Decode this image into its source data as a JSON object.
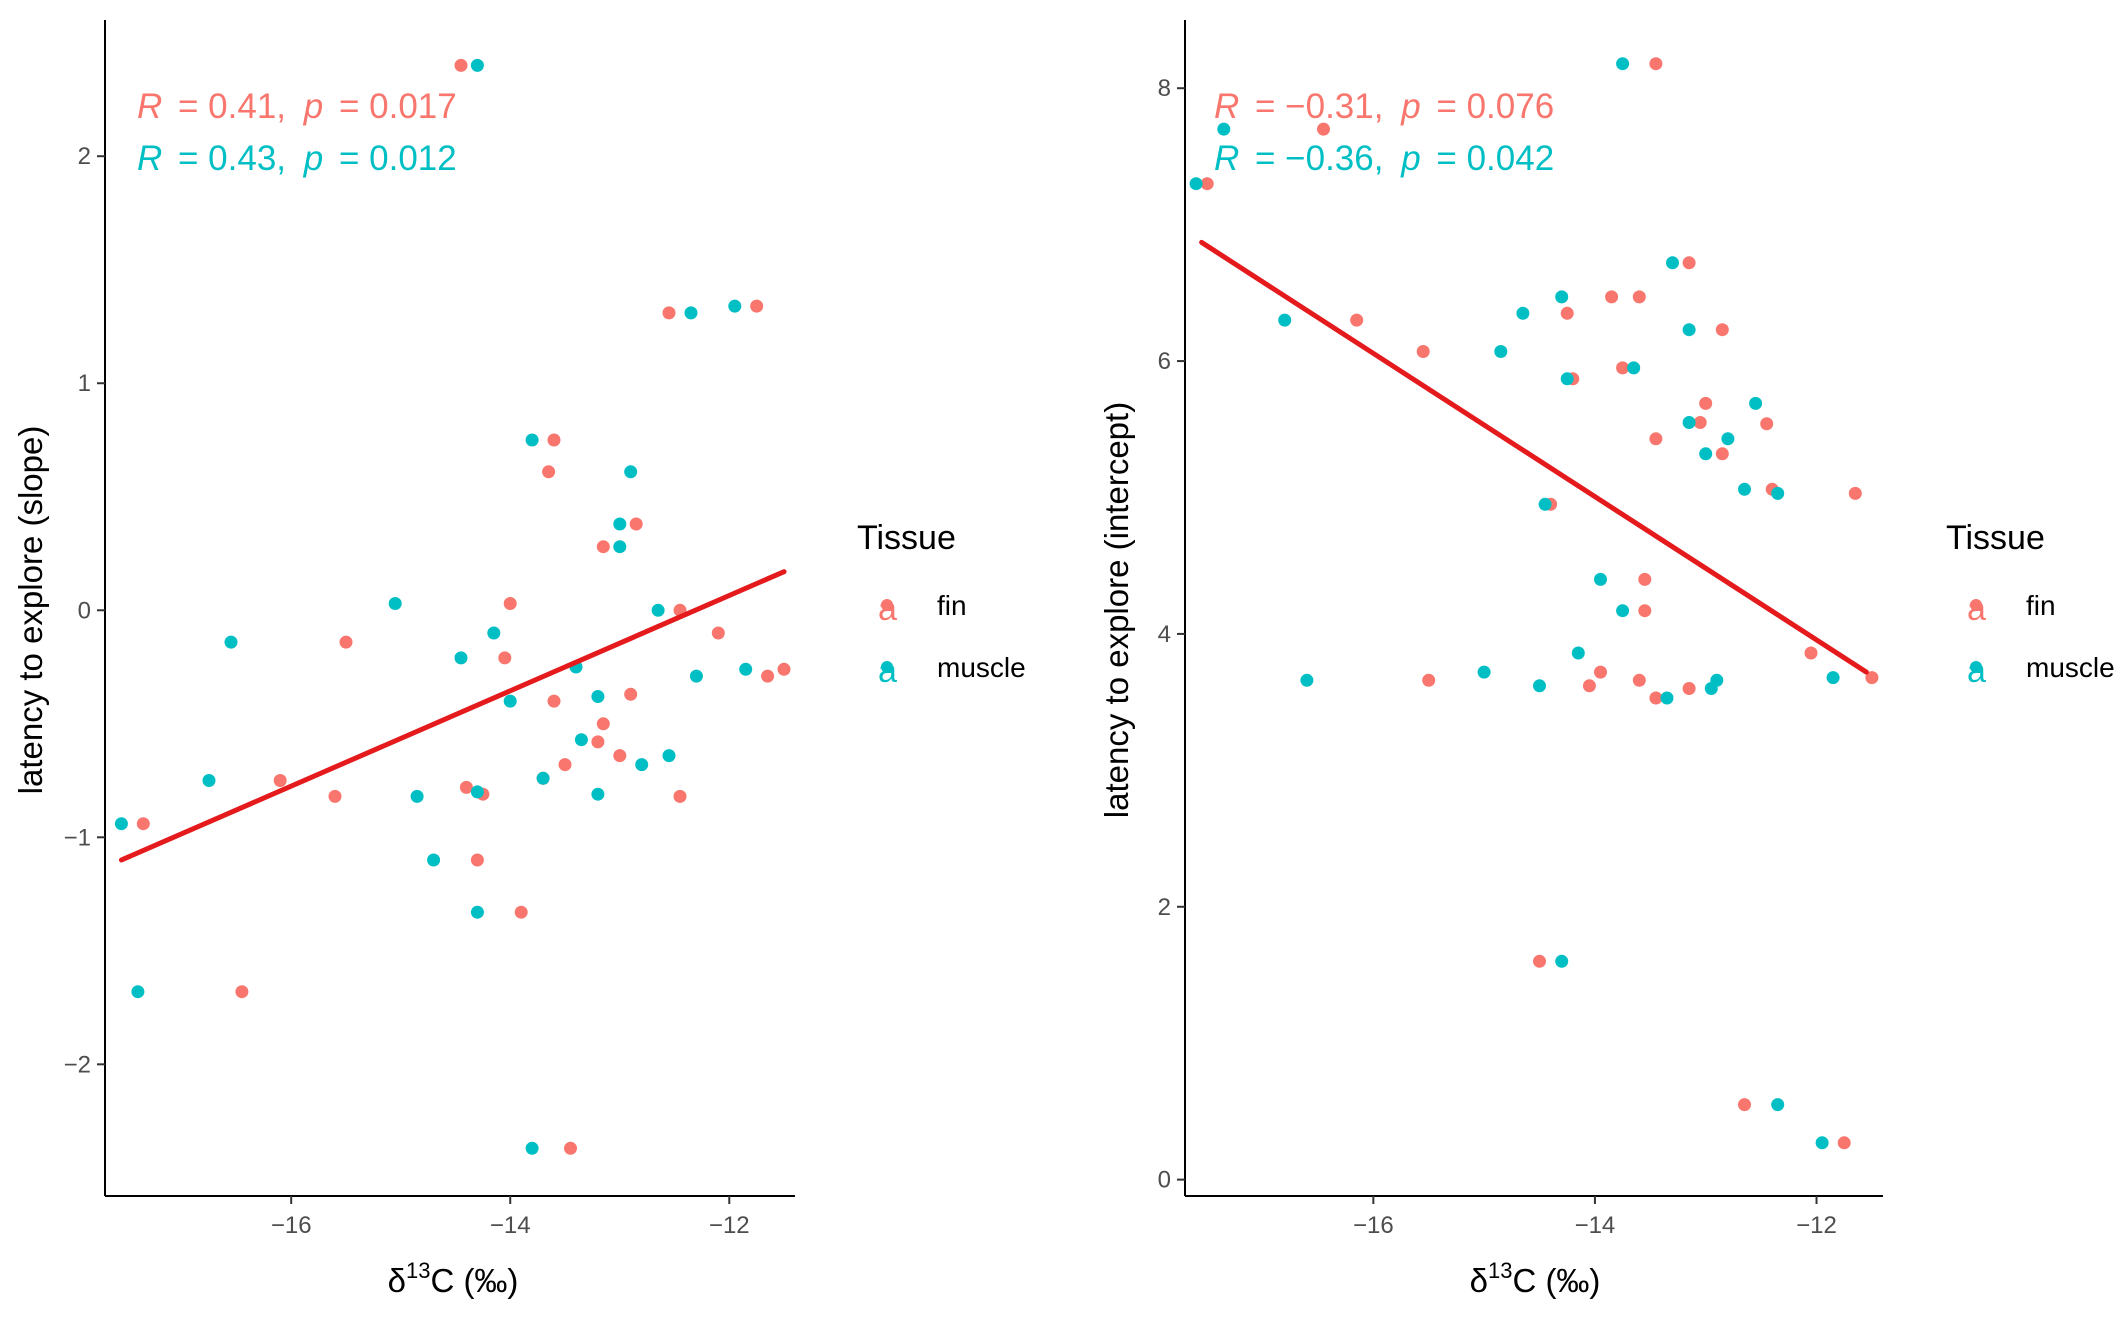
{
  "legend": {
    "title": "Tissue",
    "entries": [
      {
        "label": "fin",
        "key_glyph": "a",
        "color": "#F8766D"
      },
      {
        "label": "muscle",
        "key_glyph": "a",
        "color": "#00BFC4"
      }
    ]
  },
  "colors": {
    "fin": "#F8766D",
    "muscle": "#00BFC4",
    "fit_line": "#E41A1C",
    "axis": "#000000",
    "tick_text": "#4d4d4d"
  },
  "chart_data": [
    {
      "type": "scatter",
      "xlabel": "δ13C (‰)",
      "xlabel_parts": {
        "delta": "δ",
        "sup": "13",
        "rest": "C (‰)"
      },
      "ylabel": "latency to explore (slope)",
      "xlim": [
        -17.7,
        -11.4
      ],
      "ylim": [
        -2.58,
        2.6
      ],
      "xticks": [
        -16,
        -14,
        -12
      ],
      "yticks": [
        -2,
        -1,
        0,
        1,
        2
      ],
      "grid": false,
      "legend_position": "right",
      "annotations": [
        {
          "series": "fin",
          "r_label": "R",
          "r_value": "= 0.41,",
          "p_label": "p",
          "p_value": "= 0.017"
        },
        {
          "series": "muscle",
          "r_label": "R",
          "r_value": "= 0.43,",
          "p_label": "p",
          "p_value": "= 0.012"
        }
      ],
      "series": [
        {
          "name": "fin",
          "points": [
            [
              -17.35,
              -0.94
            ],
            [
              -16.45,
              -1.68
            ],
            [
              -16.1,
              -0.75
            ],
            [
              -15.6,
              -0.82
            ],
            [
              -15.5,
              -0.14
            ],
            [
              -14.45,
              2.4
            ],
            [
              -14.4,
              -0.78
            ],
            [
              -14.3,
              -1.1
            ],
            [
              -14.25,
              -0.81
            ],
            [
              -14.05,
              -0.21
            ],
            [
              -14.0,
              0.03
            ],
            [
              -13.9,
              -1.33
            ],
            [
              -13.7,
              -0.74
            ],
            [
              -13.65,
              0.61
            ],
            [
              -13.6,
              0.75
            ],
            [
              -13.6,
              -0.4
            ],
            [
              -13.45,
              -2.37
            ],
            [
              -13.5,
              -0.68
            ],
            [
              -13.2,
              -0.58
            ],
            [
              -13.15,
              -0.5
            ],
            [
              -13.15,
              0.28
            ],
            [
              -13.0,
              -0.64
            ],
            [
              -12.9,
              -0.37
            ],
            [
              -12.85,
              0.38
            ],
            [
              -12.55,
              1.31
            ],
            [
              -12.45,
              0.0
            ],
            [
              -12.45,
              -0.82
            ],
            [
              -12.1,
              -0.1
            ],
            [
              -11.75,
              1.34
            ],
            [
              -11.65,
              -0.29
            ],
            [
              -11.5,
              -0.26
            ]
          ]
        },
        {
          "name": "muscle",
          "points": [
            [
              -17.55,
              -0.94
            ],
            [
              -17.4,
              -1.68
            ],
            [
              -16.75,
              -0.75
            ],
            [
              -16.55,
              -0.14
            ],
            [
              -15.05,
              0.03
            ],
            [
              -14.85,
              -0.82
            ],
            [
              -14.7,
              -1.1
            ],
            [
              -14.45,
              -0.21
            ],
            [
              -14.3,
              -1.33
            ],
            [
              -14.3,
              2.4
            ],
            [
              -14.3,
              -0.8
            ],
            [
              -14.15,
              -0.1
            ],
            [
              -14.0,
              -0.4
            ],
            [
              -13.8,
              -2.37
            ],
            [
              -13.8,
              0.75
            ],
            [
              -13.7,
              -0.74
            ],
            [
              -13.4,
              -0.25
            ],
            [
              -13.35,
              -0.57
            ],
            [
              -13.2,
              -0.38
            ],
            [
              -13.2,
              -0.81
            ],
            [
              -13.0,
              0.38
            ],
            [
              -13.0,
              0.28
            ],
            [
              -12.9,
              0.61
            ],
            [
              -12.8,
              -0.68
            ],
            [
              -12.65,
              0.0
            ],
            [
              -12.55,
              -0.64
            ],
            [
              -12.35,
              1.31
            ],
            [
              -12.3,
              -0.29
            ],
            [
              -11.95,
              1.34
            ],
            [
              -11.85,
              -0.26
            ]
          ]
        }
      ],
      "fit": {
        "x": [
          -17.55,
          -11.5
        ],
        "y": [
          -1.1,
          0.17
        ]
      }
    },
    {
      "type": "scatter",
      "xlabel": "δ13C (‰)",
      "xlabel_parts": {
        "delta": "δ",
        "sup": "13",
        "rest": "C (‰)"
      },
      "ylabel": "latency to explore (intercept)",
      "xlim": [
        -17.7,
        -11.4
      ],
      "ylim": [
        -0.12,
        8.5
      ],
      "xticks": [
        -16,
        -14,
        -12
      ],
      "yticks": [
        0,
        2,
        4,
        6,
        8
      ],
      "grid": false,
      "legend_position": "right",
      "annotations": [
        {
          "series": "fin",
          "r_label": "R",
          "r_value": "= −0.31,",
          "p_label": "p",
          "p_value": "= 0.076"
        },
        {
          "series": "muscle",
          "r_label": "R",
          "r_value": "= −0.36,",
          "p_label": "p",
          "p_value": "= 0.042"
        }
      ],
      "series": [
        {
          "name": "fin",
          "points": [
            [
              -17.5,
              7.3
            ],
            [
              -16.45,
              7.7
            ],
            [
              -16.15,
              6.3
            ],
            [
              -15.55,
              6.07
            ],
            [
              -15.5,
              3.66
            ],
            [
              -14.5,
              1.6
            ],
            [
              -14.4,
              4.95
            ],
            [
              -14.2,
              5.87
            ],
            [
              -14.25,
              6.35
            ],
            [
              -14.05,
              3.62
            ],
            [
              -13.95,
              3.72
            ],
            [
              -13.85,
              6.47
            ],
            [
              -13.75,
              5.95
            ],
            [
              -13.6,
              3.66
            ],
            [
              -13.6,
              6.47
            ],
            [
              -13.55,
              4.4
            ],
            [
              -13.55,
              4.17
            ],
            [
              -13.45,
              5.43
            ],
            [
              -13.45,
              8.18
            ],
            [
              -13.45,
              3.53
            ],
            [
              -13.15,
              3.6
            ],
            [
              -13.15,
              6.72
            ],
            [
              -13.05,
              5.55
            ],
            [
              -13.0,
              5.69
            ],
            [
              -12.85,
              5.32
            ],
            [
              -12.85,
              6.23
            ],
            [
              -12.65,
              0.55
            ],
            [
              -12.45,
              5.54
            ],
            [
              -12.4,
              5.06
            ],
            [
              -12.05,
              3.86
            ],
            [
              -11.75,
              0.27
            ],
            [
              -11.65,
              5.03
            ],
            [
              -11.5,
              3.68
            ]
          ]
        },
        {
          "name": "muscle",
          "points": [
            [
              -17.6,
              7.3
            ],
            [
              -17.35,
              7.7
            ],
            [
              -16.8,
              6.3
            ],
            [
              -16.6,
              3.66
            ],
            [
              -15.0,
              3.72
            ],
            [
              -14.85,
              6.07
            ],
            [
              -14.65,
              6.35
            ],
            [
              -14.5,
              3.62
            ],
            [
              -14.45,
              4.95
            ],
            [
              -14.3,
              1.6
            ],
            [
              -14.3,
              6.47
            ],
            [
              -14.25,
              5.87
            ],
            [
              -14.15,
              3.86
            ],
            [
              -13.95,
              4.4
            ],
            [
              -13.75,
              8.18
            ],
            [
              -13.75,
              4.17
            ],
            [
              -13.65,
              5.95
            ],
            [
              -13.35,
              3.53
            ],
            [
              -13.3,
              6.72
            ],
            [
              -13.15,
              5.55
            ],
            [
              -13.15,
              6.23
            ],
            [
              -13.0,
              5.32
            ],
            [
              -12.95,
              3.6
            ],
            [
              -12.9,
              3.66
            ],
            [
              -12.8,
              5.43
            ],
            [
              -12.65,
              5.06
            ],
            [
              -12.55,
              5.69
            ],
            [
              -12.35,
              0.55
            ],
            [
              -12.35,
              5.03
            ],
            [
              -11.95,
              0.27
            ],
            [
              -11.85,
              3.68
            ]
          ]
        }
      ],
      "fit": {
        "x": [
          -17.55,
          -11.55
        ],
        "y": [
          6.87,
          3.72
        ]
      }
    }
  ]
}
